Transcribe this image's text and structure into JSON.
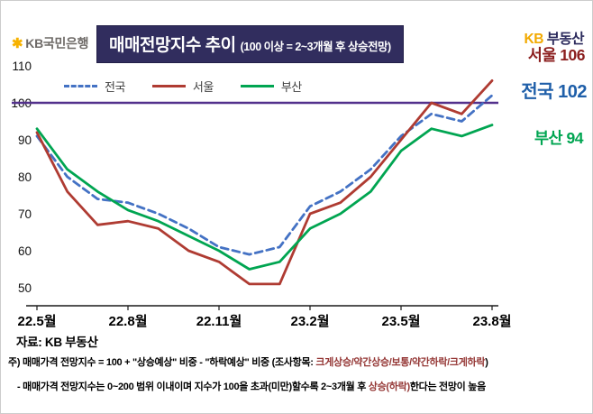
{
  "logo": {
    "symbol": "✱",
    "text": "KB국민은행"
  },
  "title": {
    "main": "매매전망지수 추이",
    "sub": "(100 이상 = 2~3개월 후 상승전망)"
  },
  "brand": {
    "kb": "KB",
    "suffix": " 부동산",
    "kb_color": "#F2A900",
    "suffix_color": "#2B2A5C"
  },
  "annotations": [
    {
      "label": "서울",
      "value": "106",
      "color": "#8B1E1E"
    },
    {
      "label": "전국",
      "value": "102",
      "color": "#1F5FA9"
    },
    {
      "label": "부산",
      "value": "94",
      "color": "#00A551"
    }
  ],
  "chart_data": {
    "type": "line",
    "title": "매매전망지수 추이",
    "x": [
      "22.5",
      "22.6",
      "22.7",
      "22.8",
      "22.9",
      "22.10",
      "22.11",
      "22.12",
      "23.1",
      "23.2",
      "23.3",
      "23.4",
      "23.5",
      "23.6",
      "23.7",
      "23.8"
    ],
    "x_tick_positions": [
      0,
      3,
      6,
      9,
      12,
      15
    ],
    "x_tick_labels": [
      "22.5월",
      "22.8월",
      "22.11월",
      "23.2월",
      "23.5월",
      "23.8월"
    ],
    "ylim": [
      50,
      110
    ],
    "yticks": [
      110,
      100,
      90,
      80,
      70,
      60,
      50
    ],
    "grid": false,
    "legend_position": "top-left-inside",
    "reference_line": {
      "y": 100,
      "color": "#53318C"
    },
    "series": [
      {
        "name": "전국",
        "color": "#4472C4",
        "dash": "dashed",
        "values": [
          91,
          80,
          74,
          73,
          70,
          66,
          61,
          59,
          61,
          72,
          76,
          82,
          91,
          97,
          95,
          102
        ]
      },
      {
        "name": "서울",
        "color": "#AF3B32",
        "dash": "solid",
        "values": [
          92,
          76,
          67,
          68,
          66,
          60,
          57,
          51,
          51,
          70,
          73,
          80,
          90,
          100,
          97,
          106
        ]
      },
      {
        "name": "부산",
        "color": "#00A551",
        "dash": "solid",
        "values": [
          93,
          82,
          76,
          71,
          68,
          64,
          60,
          55,
          57,
          66,
          70,
          76,
          87,
          93,
          91,
          94
        ]
      }
    ]
  },
  "source": "자료: KB 부동산",
  "notes": [
    {
      "segments": [
        {
          "text": "주) 매매가격 전망지수 = 100 + \"상승예상\" 비중 - \"하락예상\" 비중 (조사항목: ",
          "color": "#000000"
        },
        {
          "text": "크게상승/약간상승/보통/약간하락/크게하락",
          "color": "#943634"
        },
        {
          "text": ")",
          "color": "#000000"
        }
      ]
    },
    {
      "segments": [
        {
          "text": "- 매매가격 전망지수는 0~200 범위 이내이며 지수가 100을 초과(미만)할수록 2~3개월 후 ",
          "color": "#000000"
        },
        {
          "text": "상승(하락)",
          "color": "#943634"
        },
        {
          "text": "한다는 전망이 높음",
          "color": "#000000"
        }
      ]
    }
  ]
}
